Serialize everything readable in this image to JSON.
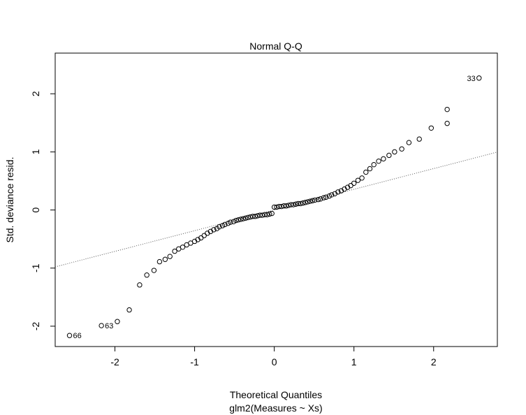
{
  "chart_data": {
    "type": "scatter",
    "title": "Normal Q-Q",
    "xlabel": "Theoretical Quantiles",
    "ylabel": "Std. deviance resid.",
    "subtitle": "glm2(Measures ~ Xs)",
    "xlim": [
      -2.75,
      2.8
    ],
    "ylim": [
      -2.35,
      2.7
    ],
    "x_ticks": [
      -2,
      -1,
      0,
      1,
      2
    ],
    "x_tick_labels": [
      "-2",
      "-1",
      "0",
      "1",
      "2"
    ],
    "y_ticks": [
      -2,
      -1,
      0,
      1,
      2
    ],
    "y_tick_labels": [
      "-2",
      "-1",
      "0",
      "1",
      "2"
    ],
    "reference_line": {
      "slope": 0.356,
      "intercept": 0.0,
      "style": "dotted"
    },
    "labeled_points": [
      {
        "label": "33",
        "x": 2.57,
        "y": 2.27
      },
      {
        "label": "66",
        "x": -2.57,
        "y": -2.16
      },
      {
        "label": "63",
        "x": -2.17,
        "y": -1.99
      }
    ],
    "points": [
      [
        -2.57,
        -2.16
      ],
      [
        -2.17,
        -1.99
      ],
      [
        -1.97,
        -1.92
      ],
      [
        -1.82,
        -1.72
      ],
      [
        -1.69,
        -1.29
      ],
      [
        -1.6,
        -1.12
      ],
      [
        -1.51,
        -1.04
      ],
      [
        -1.44,
        -0.89
      ],
      [
        -1.37,
        -0.85
      ],
      [
        -1.31,
        -0.8
      ],
      [
        -1.25,
        -0.71
      ],
      [
        -1.2,
        -0.67
      ],
      [
        -1.15,
        -0.64
      ],
      [
        -1.1,
        -0.6
      ],
      [
        -1.05,
        -0.57
      ],
      [
        -1.0,
        -0.54
      ],
      [
        -0.96,
        -0.51
      ],
      [
        -0.92,
        -0.48
      ],
      [
        -0.88,
        -0.44
      ],
      [
        -0.84,
        -0.4
      ],
      [
        -0.8,
        -0.37
      ],
      [
        -0.76,
        -0.34
      ],
      [
        -0.72,
        -0.32
      ],
      [
        -0.69,
        -0.29
      ],
      [
        -0.65,
        -0.27
      ],
      [
        -0.62,
        -0.25
      ],
      [
        -0.58,
        -0.23
      ],
      [
        -0.55,
        -0.21
      ],
      [
        -0.51,
        -0.2
      ],
      [
        -0.48,
        -0.18
      ],
      [
        -0.45,
        -0.17
      ],
      [
        -0.42,
        -0.16
      ],
      [
        -0.39,
        -0.15
      ],
      [
        -0.36,
        -0.14
      ],
      [
        -0.33,
        -0.13
      ],
      [
        -0.3,
        -0.12
      ],
      [
        -0.27,
        -0.11
      ],
      [
        -0.24,
        -0.11
      ],
      [
        -0.21,
        -0.1
      ],
      [
        -0.18,
        -0.09
      ],
      [
        -0.15,
        -0.09
      ],
      [
        -0.12,
        -0.08
      ],
      [
        -0.09,
        -0.08
      ],
      [
        -0.06,
        -0.07
      ],
      [
        -0.03,
        -0.06
      ],
      [
        0.0,
        0.05
      ],
      [
        0.03,
        0.05
      ],
      [
        0.06,
        0.06
      ],
      [
        0.09,
        0.06
      ],
      [
        0.12,
        0.07
      ],
      [
        0.15,
        0.07
      ],
      [
        0.18,
        0.08
      ],
      [
        0.21,
        0.09
      ],
      [
        0.24,
        0.09
      ],
      [
        0.27,
        0.1
      ],
      [
        0.3,
        0.11
      ],
      [
        0.33,
        0.11
      ],
      [
        0.36,
        0.12
      ],
      [
        0.39,
        0.13
      ],
      [
        0.42,
        0.14
      ],
      [
        0.45,
        0.15
      ],
      [
        0.48,
        0.16
      ],
      [
        0.51,
        0.17
      ],
      [
        0.55,
        0.18
      ],
      [
        0.58,
        0.19
      ],
      [
        0.62,
        0.21
      ],
      [
        0.65,
        0.22
      ],
      [
        0.69,
        0.24
      ],
      [
        0.72,
        0.26
      ],
      [
        0.76,
        0.28
      ],
      [
        0.8,
        0.31
      ],
      [
        0.84,
        0.33
      ],
      [
        0.88,
        0.36
      ],
      [
        0.92,
        0.39
      ],
      [
        0.96,
        0.42
      ],
      [
        1.0,
        0.46
      ],
      [
        1.05,
        0.51
      ],
      [
        1.1,
        0.55
      ],
      [
        1.15,
        0.65
      ],
      [
        1.2,
        0.71
      ],
      [
        1.25,
        0.78
      ],
      [
        1.31,
        0.84
      ],
      [
        1.37,
        0.88
      ],
      [
        1.44,
        0.94
      ],
      [
        1.51,
        1.0
      ],
      [
        1.6,
        1.05
      ],
      [
        1.69,
        1.16
      ],
      [
        1.82,
        1.22
      ],
      [
        1.97,
        1.41
      ],
      [
        2.17,
        1.49
      ],
      [
        2.17,
        1.73
      ],
      [
        2.57,
        2.27
      ]
    ]
  }
}
